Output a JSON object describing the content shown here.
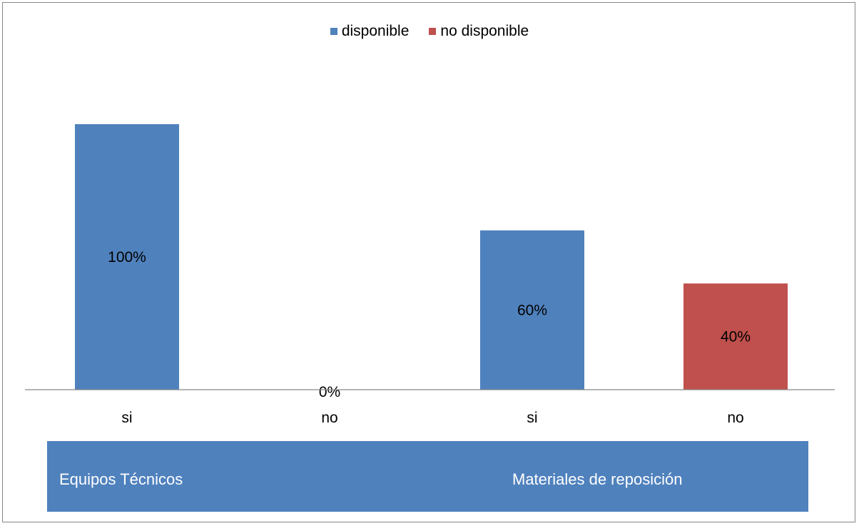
{
  "legend": [
    {
      "label": "disponible",
      "color": "#4F81BD"
    },
    {
      "label": "no disponible",
      "color": "#C0504D"
    }
  ],
  "colors": {
    "band": "#4F81BD",
    "axis": "#868686"
  },
  "groups": [
    {
      "label": "Equipos Técnicos"
    },
    {
      "label": "Materiales  de reposición"
    }
  ],
  "chart_data": {
    "type": "bar",
    "categories": [
      "si",
      "no",
      "si",
      "no"
    ],
    "group_labels": [
      "Equipos Técnicos",
      "Materiales  de reposición"
    ],
    "series": [
      {
        "name": "disponible",
        "values": [
          100,
          0,
          60,
          null
        ]
      },
      {
        "name": "no disponible",
        "values": [
          null,
          null,
          null,
          40
        ]
      }
    ],
    "data_labels": [
      "100%",
      "0%",
      "60%",
      "40%"
    ],
    "bar_series": [
      0,
      0,
      0,
      1
    ],
    "ylim": [
      0,
      100
    ],
    "unit": "%",
    "grid": false,
    "legend_position": "top"
  }
}
